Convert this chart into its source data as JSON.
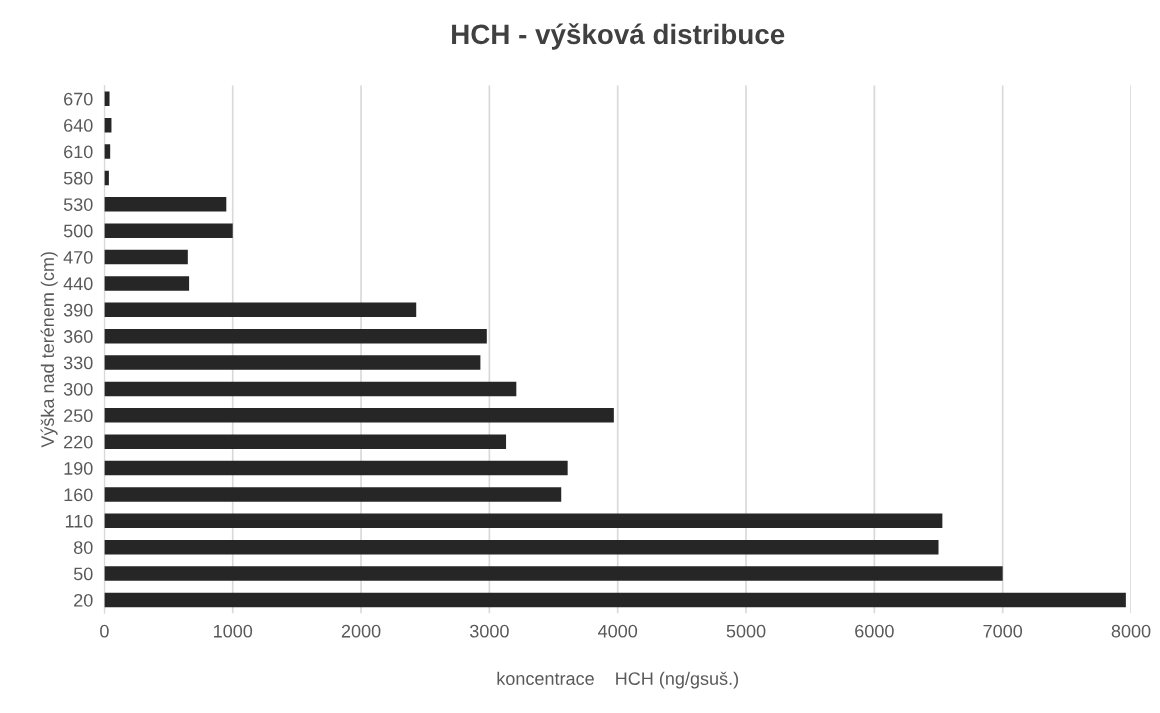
{
  "chart_data": {
    "type": "bar",
    "orientation": "horizontal",
    "title": "HCH - výšková distribuce",
    "xlabel": "koncentrace    HCH (ng/gsuš.)",
    "ylabel": "Výška nad terénem (cm)",
    "categories": [
      "670",
      "640",
      "610",
      "580",
      "530",
      "500",
      "470",
      "440",
      "390",
      "360",
      "330",
      "300",
      "250",
      "220",
      "190",
      "160",
      "110",
      "80",
      "50",
      "20"
    ],
    "values": [
      40,
      55,
      45,
      35,
      950,
      1000,
      650,
      660,
      2430,
      2980,
      2930,
      3210,
      3970,
      3130,
      3610,
      3560,
      6530,
      6500,
      7000,
      7960
    ],
    "color": "#262626",
    "xlim": [
      0,
      8000
    ],
    "xticks": [
      0,
      1000,
      2000,
      3000,
      4000,
      5000,
      6000,
      7000,
      8000
    ],
    "grid": "x"
  }
}
